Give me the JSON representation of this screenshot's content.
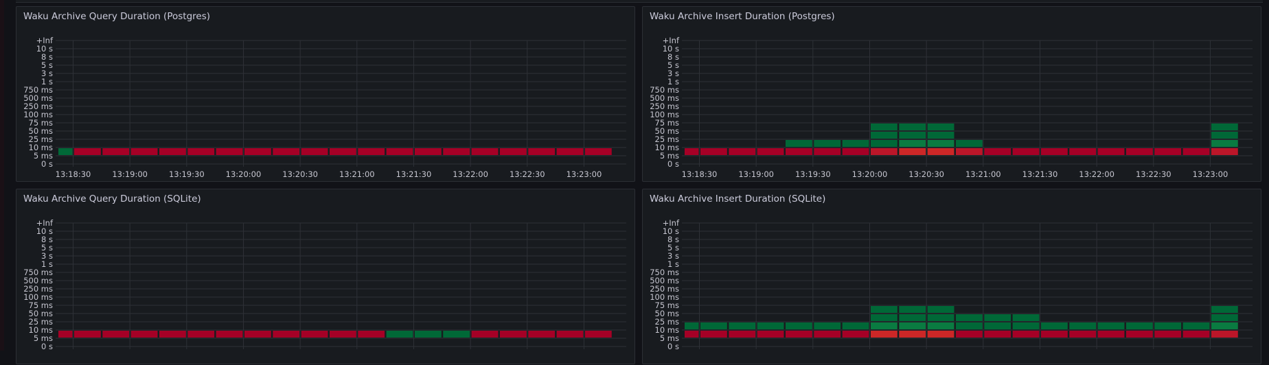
{
  "palette": {
    "R1": "#a50026",
    "R2": "#bb1629",
    "R3": "#cc2727",
    "G1": "#006837",
    "G2": "#0a7b41",
    "background": "#111217",
    "panel": "#181b1f",
    "grid": "#2e3137"
  },
  "chart_data": [
    {
      "type": "heatmap",
      "title": "Waku Archive Query Duration (Postgres)",
      "y_buckets": [
        "+Inf",
        "10 s",
        "8 s",
        "5 s",
        "3 s",
        "1 s",
        "750 ms",
        "500 ms",
        "250 ms",
        "100 ms",
        "75 ms",
        "50 ms",
        "25 ms",
        "10 ms",
        "5 ms",
        "0 s"
      ],
      "x_ticks": [
        "13:18:30",
        "13:19:00",
        "13:19:30",
        "13:20:00",
        "13:20:30",
        "13:21:00",
        "13:21:30",
        "13:22:00",
        "13:22:30",
        "13:23:00"
      ],
      "x_interval": "15s",
      "columns": 20,
      "cells": {
        "5 ms": [
          "G1",
          "R1",
          "R1",
          "R1",
          "R1",
          "R1",
          "R1",
          "R1",
          "R1",
          "R1",
          "R1",
          "R1",
          "R1",
          "R1",
          "R1",
          "R1",
          "R1",
          "R1",
          "R1",
          "R1"
        ]
      }
    },
    {
      "type": "heatmap",
      "title": "Waku Archive Insert Duration (Postgres)",
      "y_buckets": [
        "+Inf",
        "10 s",
        "8 s",
        "5 s",
        "3 s",
        "1 s",
        "750 ms",
        "500 ms",
        "250 ms",
        "100 ms",
        "75 ms",
        "50 ms",
        "25 ms",
        "10 ms",
        "5 ms",
        "0 s"
      ],
      "x_ticks": [
        "13:18:30",
        "13:19:00",
        "13:19:30",
        "13:20:00",
        "13:20:30",
        "13:21:00",
        "13:21:30",
        "13:22:00",
        "13:22:30",
        "13:23:00"
      ],
      "x_interval": "15s",
      "columns": 20,
      "cells": {
        "5 ms": [
          "R1",
          "R1",
          "R1",
          "R1",
          "R1",
          "R1",
          "R1",
          "R2",
          "R3",
          "R3",
          "R2",
          "R1",
          "R1",
          "R1",
          "R1",
          "R1",
          "R1",
          "R1",
          "R1",
          "R2"
        ],
        "10 ms": [
          "",
          "",
          "",
          "",
          "G1",
          "G1",
          "G1",
          "G1",
          "G2",
          "G2",
          "G1",
          "",
          "",
          "",
          "",
          "",
          "",
          "",
          "",
          "G2"
        ],
        "25 ms": [
          "",
          "",
          "",
          "",
          "",
          "",
          "",
          "G1",
          "G1",
          "G1",
          "",
          "",
          "",
          "",
          "",
          "",
          "",
          "",
          "",
          "G1"
        ],
        "50 ms": [
          "",
          "",
          "",
          "",
          "",
          "",
          "",
          "G1",
          "G1",
          "G1",
          "",
          "",
          "",
          "",
          "",
          "",
          "",
          "",
          "",
          "G1"
        ]
      }
    },
    {
      "type": "heatmap",
      "title": "Waku Archive Query Duration (SQLite)",
      "y_buckets": [
        "+Inf",
        "10 s",
        "8 s",
        "5 s",
        "3 s",
        "1 s",
        "750 ms",
        "500 ms",
        "250 ms",
        "100 ms",
        "75 ms",
        "50 ms",
        "25 ms",
        "10 ms",
        "5 ms",
        "0 s"
      ],
      "x_ticks": [],
      "x_interval": "15s",
      "columns": 20,
      "cells": {
        "5 ms": [
          "R1",
          "R1",
          "R1",
          "R1",
          "R1",
          "R1",
          "R1",
          "R1",
          "R1",
          "R1",
          "R1",
          "R1",
          "G1",
          "G1",
          "G1",
          "R1",
          "R1",
          "R1",
          "R1",
          "R1"
        ]
      }
    },
    {
      "type": "heatmap",
      "title": "Waku Archive Insert Duration (SQLite)",
      "y_buckets": [
        "+Inf",
        "10 s",
        "8 s",
        "5 s",
        "3 s",
        "1 s",
        "750 ms",
        "500 ms",
        "250 ms",
        "100 ms",
        "75 ms",
        "50 ms",
        "25 ms",
        "10 ms",
        "5 ms",
        "0 s"
      ],
      "x_ticks": [],
      "x_interval": "15s",
      "columns": 20,
      "cells": {
        "5 ms": [
          "R1",
          "R1",
          "R1",
          "R1",
          "R1",
          "R1",
          "R1",
          "R3",
          "R3",
          "R3",
          "R1",
          "R1",
          "R1",
          "R1",
          "R1",
          "R1",
          "R1",
          "R1",
          "R1",
          "R2"
        ],
        "10 ms": [
          "G1",
          "G1",
          "G1",
          "G1",
          "G1",
          "G1",
          "G1",
          "G2",
          "G2",
          "G2",
          "G1",
          "G1",
          "G1",
          "G1",
          "G1",
          "G1",
          "G1",
          "G1",
          "G1",
          "G2"
        ],
        "25 ms": [
          "",
          "",
          "",
          "",
          "",
          "",
          "",
          "G1",
          "G1",
          "G1",
          "G1",
          "G1",
          "G1",
          "",
          "",
          "",
          "",
          "",
          "",
          "G1"
        ],
        "50 ms": [
          "",
          "",
          "",
          "",
          "",
          "",
          "",
          "G1",
          "G1",
          "G1",
          "",
          "",
          "",
          "",
          "",
          "",
          "",
          "",
          "",
          "G1"
        ]
      }
    }
  ]
}
